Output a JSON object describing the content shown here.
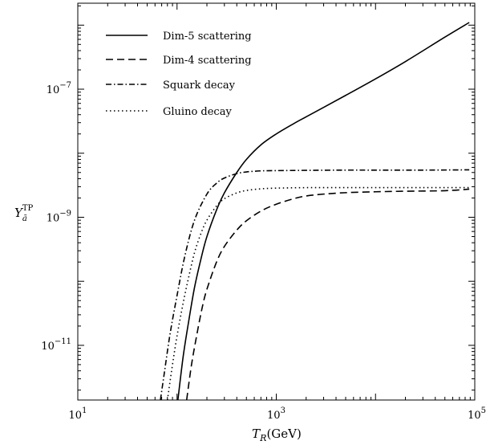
{
  "chart_data": {
    "type": "line",
    "xlabel": {
      "main": "T",
      "sub": "R",
      "rest": "(GeV)"
    },
    "ylabel": {
      "main": "Y",
      "sub": "ã",
      "sup": "TP"
    },
    "xscale": "log",
    "yscale": "log",
    "xlim": [
      10,
      100000
    ],
    "ylim": [
      1.4e-12,
      2.2e-06
    ],
    "grid": false,
    "legend_position": "top-left",
    "x_ticks": [
      {
        "value": 10,
        "base": "10",
        "exp": "1"
      },
      {
        "value": 1000,
        "base": "10",
        "exp": "3"
      },
      {
        "value": 100000,
        "base": "10",
        "exp": "5"
      }
    ],
    "y_ticks": [
      {
        "value": 1e-11,
        "base": "10",
        "exp": "−11"
      },
      {
        "value": 1e-09,
        "base": "10",
        "exp": "−9"
      },
      {
        "value": 1e-07,
        "base": "10",
        "exp": "−7"
      }
    ],
    "series": [
      {
        "name": "Dim-5 scattering",
        "style": "solid",
        "x": [
          102,
          115,
          130,
          150,
          175,
          200,
          250,
          300,
          400,
          500,
          700,
          1000,
          1500,
          2000,
          3000,
          5000,
          10000,
          20000,
          50000,
          88000
        ],
        "y": [
          1.4e-12,
          6.5e-12,
          2.2e-11,
          8e-11,
          2.3e-10,
          5e-10,
          1.3e-09,
          2.4e-09,
          5e-09,
          8e-09,
          1.35e-08,
          2e-08,
          2.9e-08,
          3.7e-08,
          5.2e-08,
          8e-08,
          1.45e-07,
          2.7e-07,
          6.5e-07,
          1.1e-06
        ]
      },
      {
        "name": "Dim-4 scattering",
        "style": "dashed",
        "x": [
          125,
          140,
          160,
          180,
          200,
          250,
          300,
          400,
          500,
          700,
          1000,
          1500,
          2000,
          3000,
          5000,
          10000,
          20000,
          50000,
          88000
        ],
        "y": [
          1.4e-12,
          5e-12,
          1.6e-11,
          4e-11,
          7.5e-11,
          2e-10,
          3.5e-10,
          6.3e-10,
          8.8e-10,
          1.25e-09,
          1.6e-09,
          1.95e-09,
          2.15e-09,
          2.3e-09,
          2.42e-09,
          2.5e-09,
          2.55e-09,
          2.6e-09,
          2.75e-09
        ]
      },
      {
        "name": "Squark decay",
        "style": "dashdot",
        "x": [
          68,
          75,
          85,
          100,
          120,
          150,
          200,
          250,
          300,
          400,
          500,
          700,
          1000,
          2000,
          5000,
          10000,
          30000,
          88000
        ],
        "y": [
          1.4e-12,
          4e-12,
          1.5e-11,
          6e-11,
          2.5e-10,
          9e-10,
          2.3e-09,
          3.4e-09,
          4.1e-09,
          4.8e-09,
          5.1e-09,
          5.3e-09,
          5.35e-09,
          5.4e-09,
          5.45e-09,
          5.45e-09,
          5.45e-09,
          5.5e-09
        ]
      },
      {
        "name": "Gluino decay",
        "style": "dotted",
        "x": [
          80,
          90,
          100,
          115,
          130,
          150,
          175,
          200,
          250,
          300,
          400,
          500,
          700,
          1000,
          2000,
          5000,
          10000,
          30000,
          88000
        ],
        "y": [
          1.4e-12,
          5e-12,
          1.4e-11,
          4.5e-11,
          1.1e-10,
          2.8e-10,
          5.7e-10,
          9e-10,
          1.5e-09,
          1.95e-09,
          2.4e-09,
          2.62e-09,
          2.78e-09,
          2.85e-09,
          2.9e-09,
          2.9e-09,
          2.9e-09,
          2.9e-09,
          2.9e-09
        ]
      }
    ]
  }
}
